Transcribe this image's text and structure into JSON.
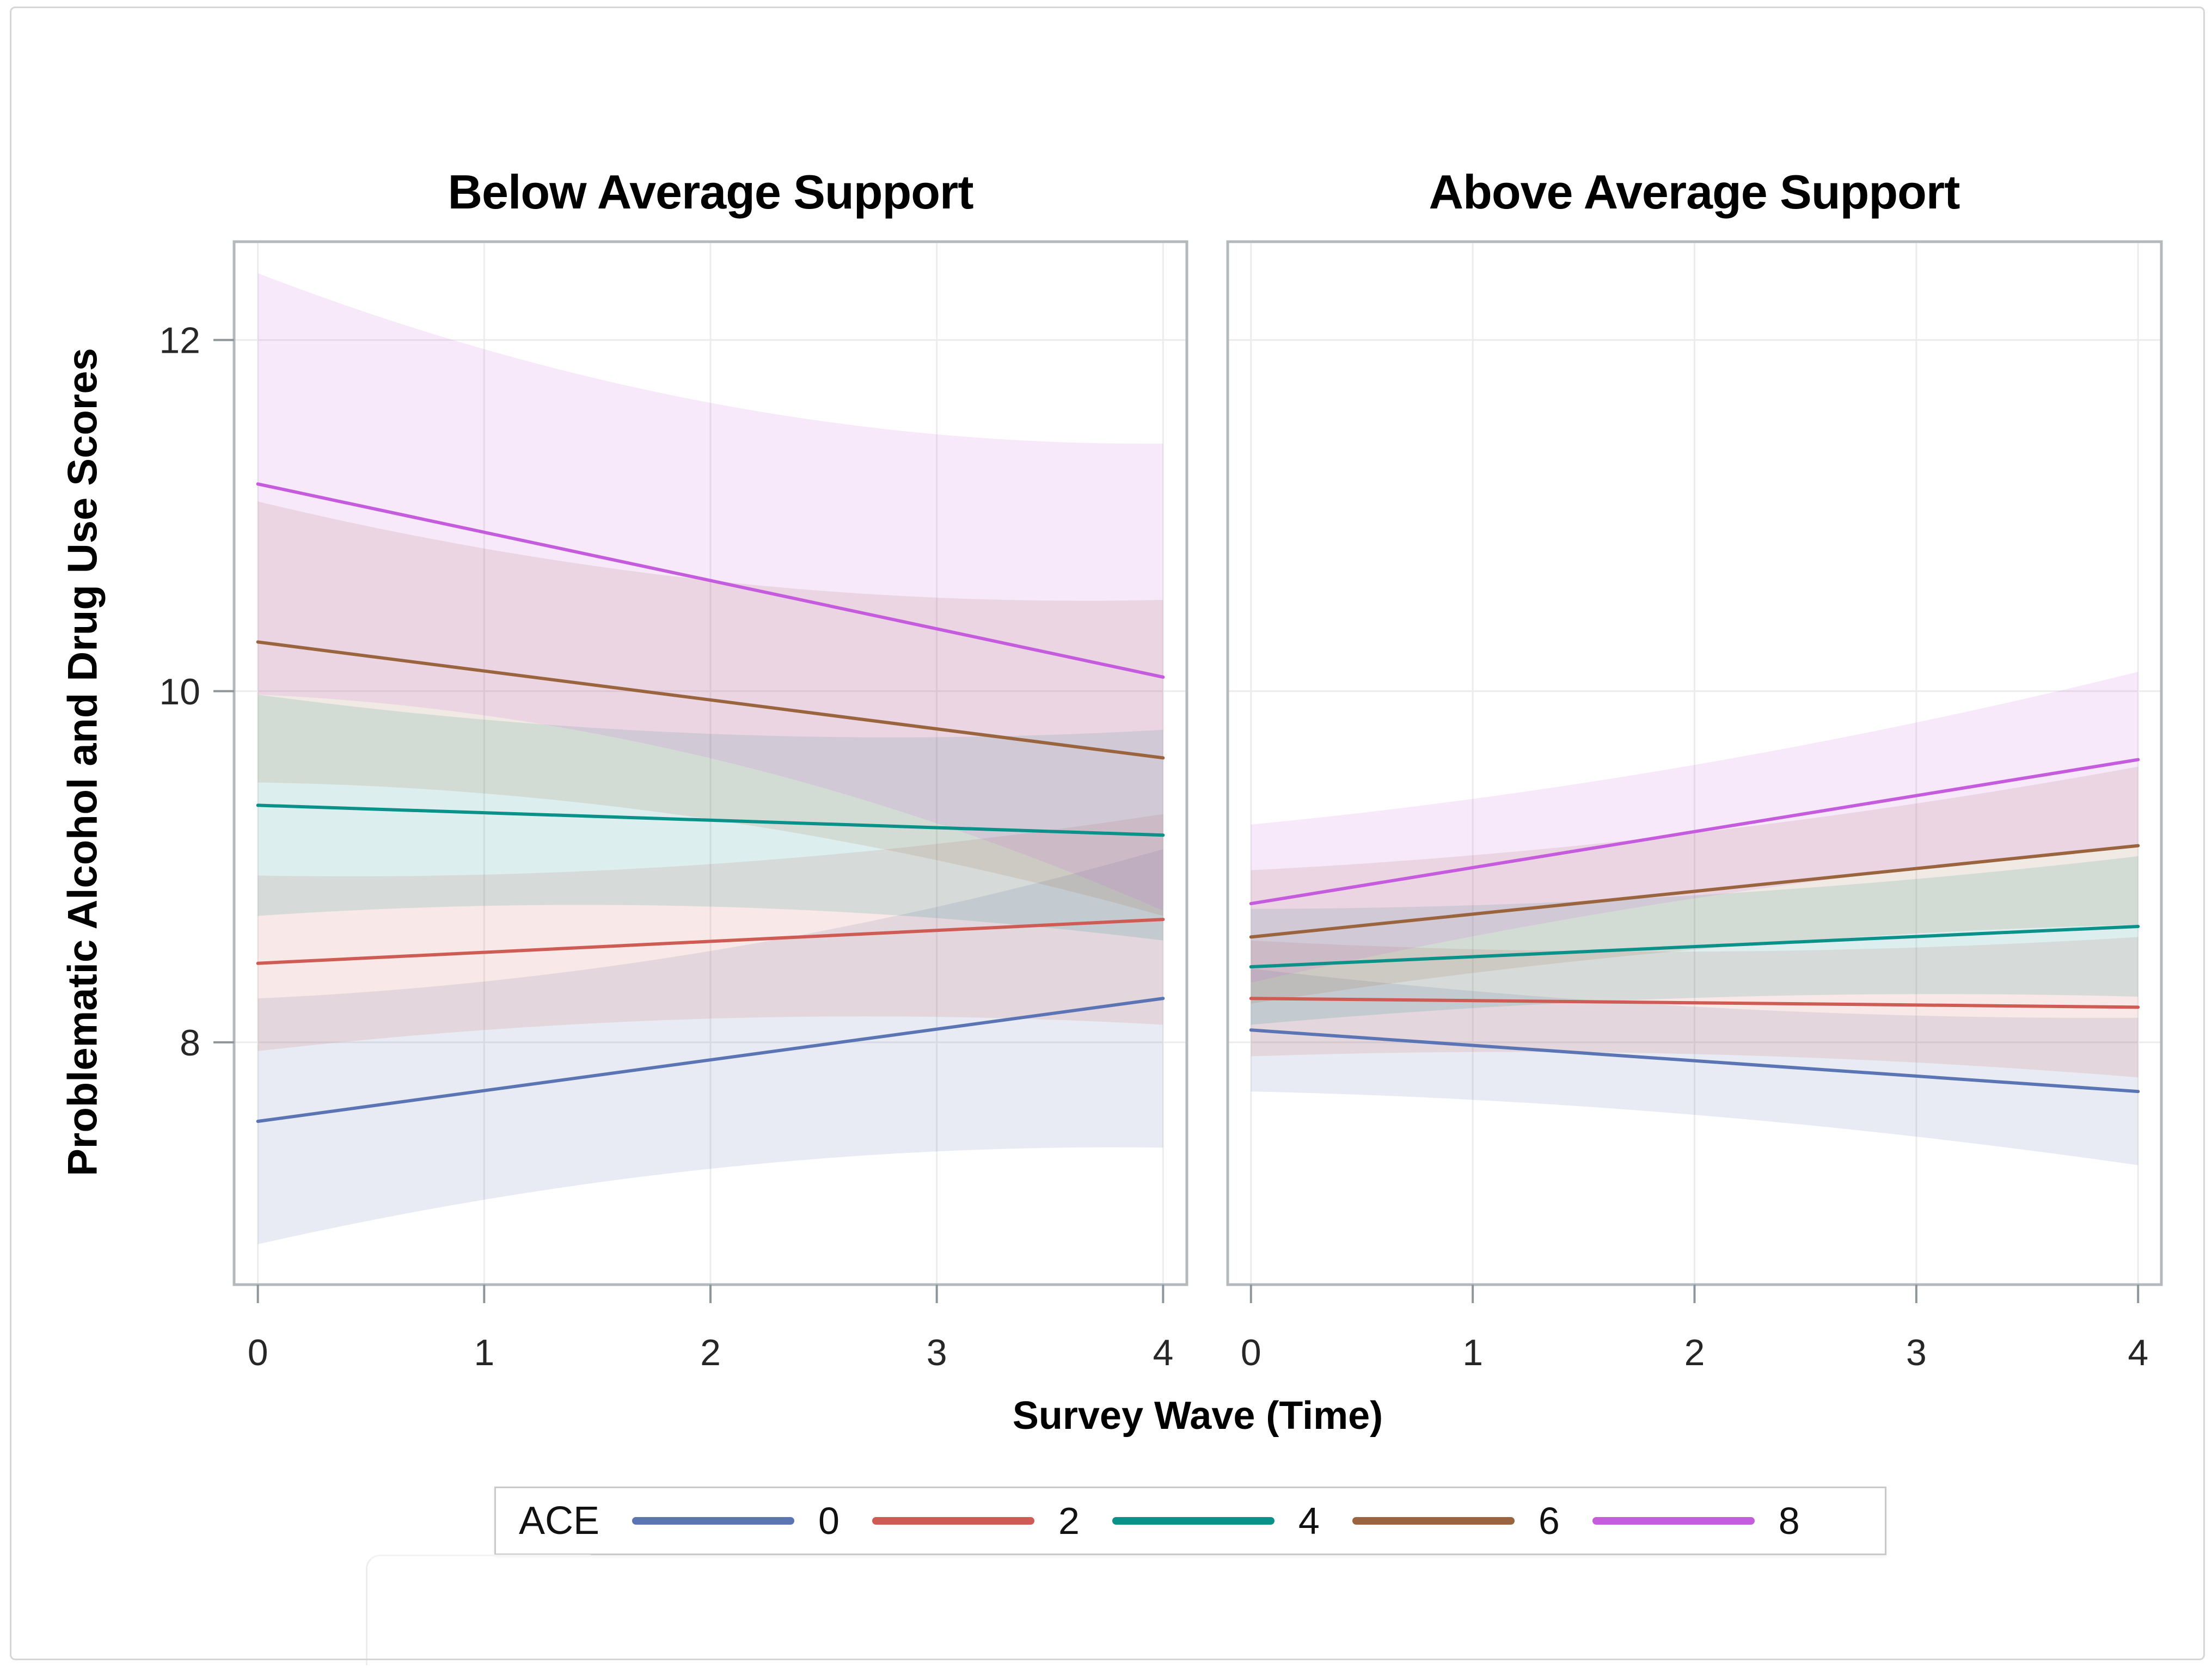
{
  "figure": {
    "background": "#ffffff",
    "frame_color": "#d6d6d6",
    "panel_border_color": "#b3b9bc",
    "gridline_color": "#ececec",
    "tick_color": "#8f969a",
    "tick_label_color": "#262626",
    "band_opacity": 0.14
  },
  "chart_data": {
    "type": "line",
    "title": "",
    "xlabel": "Survey Wave (Time)",
    "ylabel": "Problematic Alcohol and Drug Use Scores",
    "x_ticks": [
      "0",
      "1",
      "2",
      "3",
      "4"
    ],
    "y_ticks": [
      "8",
      "10",
      "12"
    ],
    "x_tick_values": [
      0,
      1,
      2,
      3,
      4
    ],
    "y_tick_values": [
      8,
      10,
      12
    ],
    "xlim": [
      -0.105,
      4.105
    ],
    "ylim": [
      6.62,
      12.56
    ],
    "grid": true,
    "legend": {
      "title": "ACE",
      "position": "bottom"
    },
    "panels": [
      {
        "title": "Below Average Support",
        "series": [
          {
            "name": "0",
            "color": "#5B74B4",
            "x": [
              0,
              4
            ],
            "y": [
              7.55,
              8.25
            ],
            "ci_lower": [
              6.85,
              7.4
            ],
            "ci_upper": [
              8.25,
              9.1
            ]
          },
          {
            "name": "2",
            "color": "#CE5C55",
            "x": [
              0,
              4
            ],
            "y": [
              8.45,
              8.7
            ],
            "ci_lower": [
              7.95,
              8.1
            ],
            "ci_upper": [
              8.95,
              9.3
            ]
          },
          {
            "name": "4",
            "color": "#0A9189",
            "x": [
              0,
              4
            ],
            "y": [
              9.35,
              9.18
            ],
            "ci_lower": [
              8.72,
              8.58
            ],
            "ci_upper": [
              9.98,
              9.78
            ]
          },
          {
            "name": "6",
            "color": "#99643E",
            "x": [
              0,
              4
            ],
            "y": [
              10.28,
              9.62
            ],
            "ci_lower": [
              9.48,
              8.72
            ],
            "ci_upper": [
              11.08,
              10.52
            ]
          },
          {
            "name": "8",
            "color": "#C45CDD",
            "x": [
              0,
              4
            ],
            "y": [
              11.18,
              10.08
            ],
            "ci_lower": [
              9.98,
              8.75
            ],
            "ci_upper": [
              12.38,
              11.41
            ]
          }
        ]
      },
      {
        "title": "Above Average Support",
        "series": [
          {
            "name": "0",
            "color": "#5B74B4",
            "x": [
              0,
              4
            ],
            "y": [
              8.07,
              7.72
            ],
            "ci_lower": [
              7.72,
              7.3
            ],
            "ci_upper": [
              8.42,
              8.14
            ]
          },
          {
            "name": "2",
            "color": "#CE5C55",
            "x": [
              0,
              4
            ],
            "y": [
              8.25,
              8.2
            ],
            "ci_lower": [
              7.92,
              7.8
            ],
            "ci_upper": [
              8.58,
              8.6
            ]
          },
          {
            "name": "4",
            "color": "#0A9189",
            "x": [
              0,
              4
            ],
            "y": [
              8.43,
              8.66
            ],
            "ci_lower": [
              8.1,
              8.26
            ],
            "ci_upper": [
              8.76,
              9.06
            ]
          },
          {
            "name": "6",
            "color": "#99643E",
            "x": [
              0,
              4
            ],
            "y": [
              8.6,
              9.12
            ],
            "ci_lower": [
              8.22,
              8.67
            ],
            "ci_upper": [
              8.98,
              9.57
            ]
          },
          {
            "name": "8",
            "color": "#C45CDD",
            "x": [
              0,
              4
            ],
            "y": [
              8.79,
              9.61
            ],
            "ci_lower": [
              8.34,
              9.11
            ],
            "ci_upper": [
              9.24,
              10.11
            ]
          }
        ]
      }
    ]
  }
}
